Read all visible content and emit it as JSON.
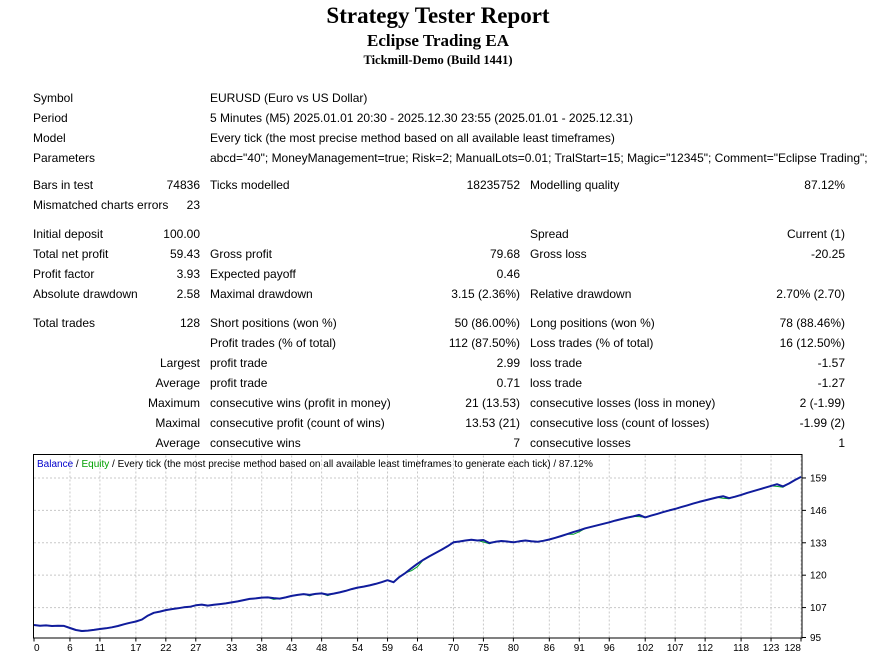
{
  "header": {
    "title": "Strategy Tester Report",
    "subtitle": "Eclipse Trading EA",
    "server": "Tickmill-Demo (Build 1441)"
  },
  "info_rows": [
    {
      "label": "Symbol",
      "value": "EURUSD (Euro vs US Dollar)"
    },
    {
      "label": "Period",
      "value": "5 Minutes (M5) 2025.01.01 20:30 - 2025.12.30 23:55 (2025.01.01 - 2025.12.31)"
    },
    {
      "label": "Model",
      "value": "Every tick (the most precise method based on all available least timeframes)"
    },
    {
      "label": "Parameters",
      "value": "abcd=\"40\"; MoneyManagement=true; Risk=2; ManualLots=0.01; TralStart=15; Magic=\"12345\"; Comment=\"Eclipse Trading\";"
    }
  ],
  "stat_groups": [
    {
      "rows": [
        [
          "Bars in test",
          "74836",
          "Ticks modelled",
          "18235752",
          "Modelling quality",
          "87.12%"
        ],
        [
          "Mismatched charts errors",
          "23",
          "",
          "",
          "",
          ""
        ]
      ]
    },
    {
      "rows": [
        [
          "Initial deposit",
          "100.00",
          "",
          "",
          "Spread",
          "Current (1)"
        ],
        [
          "Total net profit",
          "59.43",
          "Gross profit",
          "79.68",
          "Gross loss",
          "-20.25"
        ],
        [
          "Profit factor",
          "3.93",
          "Expected payoff",
          "0.46",
          "",
          ""
        ],
        [
          "Absolute drawdown",
          "2.58",
          "Maximal drawdown",
          "3.15 (2.36%)",
          "Relative drawdown",
          "2.70% (2.70)"
        ]
      ]
    },
    {
      "rows": [
        [
          "Total trades",
          "128",
          "Short positions (won %)",
          "50 (86.00%)",
          "Long positions (won %)",
          "78 (88.46%)"
        ],
        [
          "",
          "",
          "Profit trades (% of total)",
          "112 (87.50%)",
          "Loss trades (% of total)",
          "16 (12.50%)"
        ],
        [
          "",
          "Largest",
          "profit trade",
          "2.99",
          "loss trade",
          "-1.57"
        ],
        [
          "",
          "Average",
          "profit trade",
          "0.71",
          "loss trade",
          "-1.27"
        ],
        [
          "",
          "Maximum",
          "consecutive wins (profit in money)",
          "21 (13.53)",
          "consecutive losses (loss in money)",
          "2 (-1.99)"
        ],
        [
          "",
          "Maximal",
          "consecutive profit (count of wins)",
          "13.53 (21)",
          "consecutive loss (count of losses)",
          "-1.99 (2)"
        ],
        [
          "",
          "Average",
          "consecutive wins",
          "7",
          "consecutive losses",
          "1"
        ]
      ]
    }
  ],
  "chart_data": {
    "type": "line",
    "title": "Balance / Equity curve",
    "legend": [
      "Balance",
      "Equity"
    ],
    "legend_note": "Every tick (the most precise method based on all available least timeframes to generate each tick) / 87.12%",
    "legend_position": "top-left-inside",
    "grid": true,
    "xlim": [
      0,
      128
    ],
    "ylim": [
      95,
      163.2
    ],
    "x_ticks": [
      0,
      6,
      11,
      17,
      22,
      27,
      33,
      38,
      43,
      48,
      54,
      59,
      64,
      70,
      75,
      80,
      86,
      91,
      96,
      102,
      107,
      112,
      118,
      123,
      128
    ],
    "y_ticks": [
      95,
      107,
      120,
      133,
      146,
      159
    ],
    "colors": {
      "balance_line": "#101c9c",
      "equity_line": "#00a028",
      "balance_label": "#0000cc",
      "equity_label": "#00a000",
      "grid": "#c8c8c8",
      "border": "#000000"
    },
    "series": [
      {
        "name": "Balance",
        "values": [
          100.0,
          99.75,
          99.85,
          99.6,
          99.75,
          99.65,
          98.8,
          98.0,
          97.6,
          97.75,
          98.05,
          98.4,
          98.7,
          99.1,
          99.6,
          100.3,
          100.9,
          101.4,
          102.2,
          103.8,
          104.9,
          105.4,
          106.0,
          106.4,
          106.7,
          107.1,
          107.3,
          107.9,
          108.2,
          107.8,
          108.1,
          108.4,
          108.7,
          109.1,
          109.5,
          110.0,
          110.5,
          110.7,
          111.0,
          111.1,
          110.8,
          110.6,
          111.1,
          111.7,
          112.1,
          112.4,
          112.1,
          112.5,
          112.7,
          112.2,
          112.6,
          113.1,
          113.7,
          114.4,
          115.0,
          115.4,
          115.9,
          116.5,
          117.2,
          118.0,
          117.2,
          119.3,
          120.9,
          122.8,
          124.6,
          126.2,
          127.6,
          128.9,
          130.2,
          131.6,
          133.2,
          133.5,
          133.9,
          134.2,
          133.9,
          134.1,
          132.9,
          133.4,
          133.7,
          133.5,
          133.2,
          133.6,
          133.9,
          133.6,
          133.4,
          133.8,
          134.3,
          135.0,
          135.7,
          136.5,
          137.3,
          138.0,
          138.8,
          139.4,
          140.0,
          140.6,
          141.2,
          141.9,
          142.5,
          143.1,
          143.6,
          144.2,
          143.2,
          143.9,
          144.6,
          145.3,
          146.0,
          146.6,
          147.3,
          148.0,
          148.7,
          149.4,
          150.0,
          150.6,
          151.2,
          151.7,
          150.9,
          151.5,
          152.2,
          153.0,
          153.7,
          154.4,
          155.1,
          155.8,
          156.5,
          155.6,
          156.8,
          158.2,
          159.43
        ]
      },
      {
        "name": "Equity",
        "values": [
          100.0,
          99.75,
          99.85,
          99.6,
          99.75,
          99.65,
          98.8,
          98.0,
          97.4,
          97.75,
          98.05,
          98.4,
          98.7,
          99.1,
          99.6,
          100.3,
          100.9,
          101.4,
          102.2,
          103.8,
          104.9,
          105.4,
          106.0,
          106.4,
          106.7,
          107.1,
          107.3,
          107.9,
          108.2,
          107.8,
          108.1,
          108.4,
          108.7,
          109.1,
          109.5,
          110.0,
          110.5,
          110.7,
          111.0,
          111.1,
          110.3,
          110.6,
          111.1,
          111.7,
          112.1,
          112.4,
          111.7,
          112.5,
          112.7,
          111.8,
          112.6,
          113.1,
          113.7,
          114.4,
          115.0,
          115.4,
          115.9,
          116.5,
          117.2,
          118.0,
          117.2,
          119.3,
          120.9,
          121.8,
          123.4,
          126.2,
          127.6,
          128.9,
          130.2,
          131.6,
          133.2,
          133.5,
          133.9,
          134.2,
          133.9,
          133.3,
          132.6,
          133.4,
          133.7,
          133.5,
          133.2,
          133.6,
          133.9,
          133.6,
          133.4,
          133.8,
          134.3,
          135.0,
          135.7,
          136.5,
          136.4,
          137.4,
          138.8,
          139.4,
          140.0,
          140.6,
          141.2,
          141.9,
          142.5,
          143.1,
          143.6,
          143.5,
          143.2,
          143.9,
          144.6,
          145.3,
          146.0,
          146.6,
          147.3,
          148.0,
          148.7,
          149.4,
          150.0,
          150.6,
          151.2,
          150.9,
          150.7,
          151.5,
          152.2,
          153.0,
          153.7,
          154.4,
          155.1,
          155.8,
          155.6,
          155.3,
          156.8,
          158.2,
          159.43
        ]
      }
    ]
  }
}
